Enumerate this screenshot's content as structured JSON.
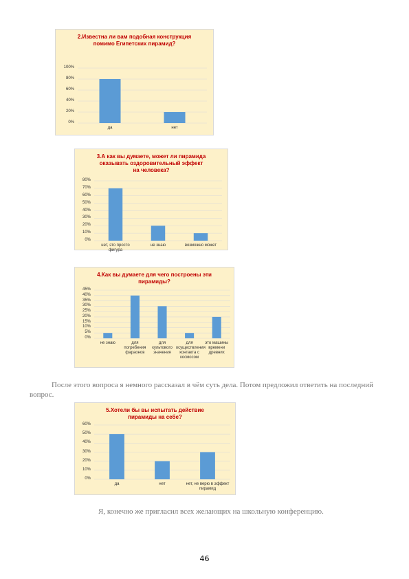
{
  "chart_data": [
    {
      "type": "bar",
      "title": "2.Известна ли вам подобная конструкция помимо Египетских пирамид?",
      "categories": [
        "да",
        "нет"
      ],
      "values": [
        80,
        20
      ],
      "color": "#5b9bd5",
      "ylim": [
        0,
        100
      ],
      "yticks": [
        {
          "value": 0,
          "label": "0%"
        },
        {
          "value": 20,
          "label": "20%"
        },
        {
          "value": 40,
          "label": "40%"
        },
        {
          "value": 60,
          "label": "60%"
        },
        {
          "value": 80,
          "label": "80%"
        },
        {
          "value": 100,
          "label": "100%"
        }
      ],
      "grid": true
    },
    {
      "type": "bar",
      "title": "3.А как вы думаете, может ли пирамида оказывать оздоровительный эффект на человека?",
      "categories": [
        "нет, это просто фигура",
        "не знаю",
        "возможно может"
      ],
      "values": [
        70,
        20,
        10
      ],
      "color": "#5b9bd5",
      "ylim": [
        0,
        80
      ],
      "yticks": [
        {
          "value": 0,
          "label": "0%"
        },
        {
          "value": 10,
          "label": "10%"
        },
        {
          "value": 20,
          "label": "20%"
        },
        {
          "value": 30,
          "label": "30%"
        },
        {
          "value": 40,
          "label": "40%"
        },
        {
          "value": 50,
          "label": "50%"
        },
        {
          "value": 60,
          "label": "60%"
        },
        {
          "value": 70,
          "label": "70%"
        },
        {
          "value": 80,
          "label": "80%"
        }
      ],
      "grid": true
    },
    {
      "type": "bar",
      "title": "4.Как вы думаете для чего построены эти пирамиды?",
      "categories": [
        "не знаю",
        "для погребения фараонов",
        "для культового значения",
        "для осуществления контакта с космосом",
        "это машины времени древних"
      ],
      "values": [
        5,
        40,
        30,
        5,
        20
      ],
      "color": "#5b9bd5",
      "ylim": [
        0,
        45
      ],
      "yticks": [
        {
          "value": 0,
          "label": "0%"
        },
        {
          "value": 5,
          "label": "5%"
        },
        {
          "value": 10,
          "label": "10%"
        },
        {
          "value": 15,
          "label": "15%"
        },
        {
          "value": 20,
          "label": "20%"
        },
        {
          "value": 25,
          "label": "25%"
        },
        {
          "value": 30,
          "label": "30%"
        },
        {
          "value": 35,
          "label": "35%"
        },
        {
          "value": 40,
          "label": "40%"
        },
        {
          "value": 45,
          "label": "45%"
        }
      ],
      "grid": true
    },
    {
      "type": "bar",
      "title": "5.Хотели бы вы испытать действие пирамиды на себе?",
      "categories": [
        "да",
        "нет",
        "нет, не верю в эффект пирамид"
      ],
      "values": [
        50,
        20,
        30
      ],
      "color": "#5b9bd5",
      "ylim": [
        0,
        60
      ],
      "yticks": [
        {
          "value": 0,
          "label": "0%"
        },
        {
          "value": 10,
          "label": "10%"
        },
        {
          "value": 20,
          "label": "20%"
        },
        {
          "value": 30,
          "label": "30%"
        },
        {
          "value": 40,
          "label": "40%"
        },
        {
          "value": 50,
          "label": "50%"
        },
        {
          "value": 60,
          "label": "60%"
        }
      ],
      "grid": true
    }
  ],
  "paragraphs": [
    "После этого вопроса я немного рассказал в чём суть дела. Потом предложил ответить на последний вопрос.",
    "Я, конечно же пригласил всех желающих на школьную конференцию."
  ],
  "page_number": "46"
}
